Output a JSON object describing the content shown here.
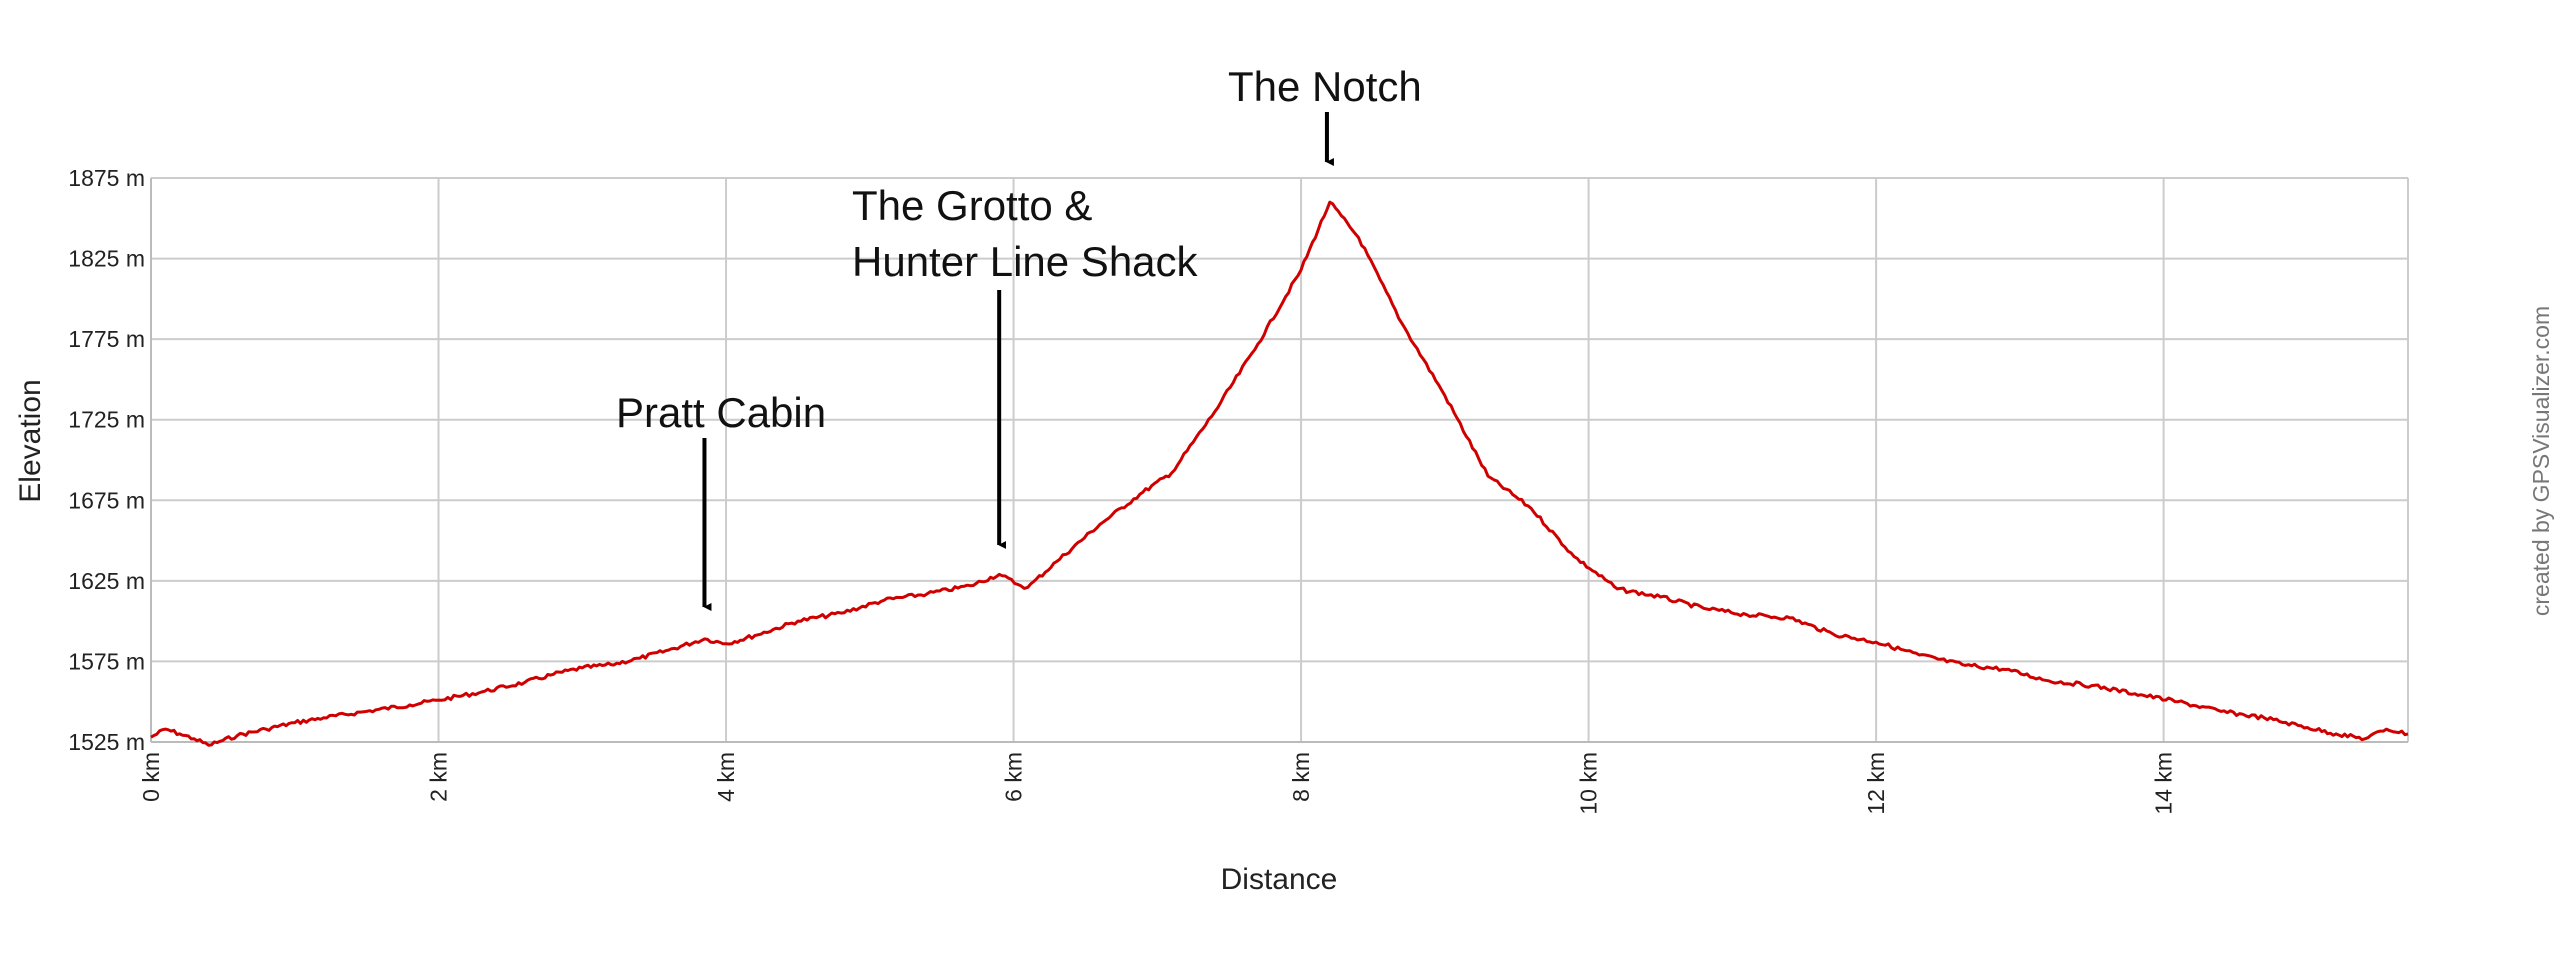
{
  "chart_data": {
    "type": "line",
    "xlabel": "Distance",
    "ylabel": "Elevation",
    "x_unit": "km",
    "y_unit": "m",
    "xlim": [
      0,
      15.7
    ],
    "ylim": [
      1525,
      1875
    ],
    "x_ticks": [
      {
        "value": 0,
        "label": "0 km"
      },
      {
        "value": 2,
        "label": "2 km"
      },
      {
        "value": 4,
        "label": "4 km"
      },
      {
        "value": 6,
        "label": "6 km"
      },
      {
        "value": 8,
        "label": "8 km"
      },
      {
        "value": 10,
        "label": "10 km"
      },
      {
        "value": 12,
        "label": "12 km"
      },
      {
        "value": 14,
        "label": "14 km"
      }
    ],
    "y_ticks": [
      {
        "value": 1525,
        "label": "1525 m"
      },
      {
        "value": 1575,
        "label": "1575 m"
      },
      {
        "value": 1625,
        "label": "1625 m"
      },
      {
        "value": 1675,
        "label": "1675 m"
      },
      {
        "value": 1725,
        "label": "1725 m"
      },
      {
        "value": 1775,
        "label": "1775 m"
      },
      {
        "value": 1825,
        "label": "1825 m"
      },
      {
        "value": 1875,
        "label": "1875 m"
      }
    ],
    "grid": true,
    "series": [
      {
        "color": "#d00000",
        "x": [
          0,
          0.1,
          0.2,
          0.3,
          0.4,
          0.5,
          0.6,
          0.8,
          1.0,
          1.2,
          1.5,
          1.8,
          2.0,
          2.3,
          2.6,
          2.8,
          3.0,
          3.2,
          3.4,
          3.6,
          3.85,
          4.0,
          4.2,
          4.5,
          4.8,
          5.1,
          5.4,
          5.7,
          5.9,
          6.05,
          6.1,
          6.3,
          6.6,
          6.9,
          7.1,
          7.4,
          7.7,
          8.0,
          8.2,
          8.4,
          8.7,
          9.0,
          9.3,
          9.6,
          9.9,
          10.2,
          10.5,
          10.8,
          11.1,
          11.4,
          11.7,
          12.0,
          12.3,
          12.6,
          12.9,
          13.2,
          13.5,
          13.8,
          14.1,
          14.4,
          14.7,
          15.0,
          15.2,
          15.4,
          15.55,
          15.7
        ],
        "y": [
          1528,
          1533,
          1530,
          1527,
          1523,
          1526,
          1529,
          1533,
          1537,
          1540,
          1544,
          1548,
          1551,
          1556,
          1562,
          1567,
          1571,
          1573,
          1577,
          1582,
          1589,
          1586,
          1591,
          1600,
          1605,
          1613,
          1617,
          1622,
          1629,
          1622,
          1621,
          1637,
          1660,
          1680,
          1692,
          1730,
          1772,
          1818,
          1860,
          1838,
          1785,
          1740,
          1690,
          1670,
          1640,
          1620,
          1615,
          1608,
          1604,
          1602,
          1592,
          1587,
          1579,
          1573,
          1570,
          1563,
          1560,
          1555,
          1550,
          1544,
          1540,
          1534,
          1530,
          1527,
          1533,
          1530
        ]
      }
    ],
    "annotations": [
      {
        "lines": [
          "Pratt Cabin"
        ],
        "x": 3.85,
        "y": 1589
      },
      {
        "lines": [
          "The Grotto &",
          "Hunter Line Shack"
        ],
        "x": 5.9,
        "y": 1629
      },
      {
        "lines": [
          "The Notch"
        ],
        "x": 8.18,
        "y": 1860
      }
    ]
  },
  "credit": "created by GPSVisualizer.com"
}
